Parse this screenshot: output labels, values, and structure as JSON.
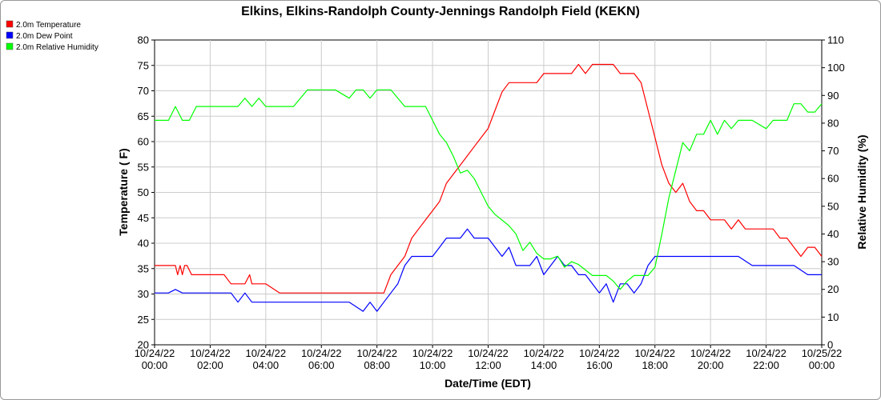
{
  "chart_data": {
    "type": "line",
    "title": "Elkins, Elkins-Randolph County-Jennings Randolph Field (KEKN)",
    "xlabel": "Date/Time (EDT)",
    "ylabel_left": "Temperature ( F)",
    "ylabel_right": "Relative Humidity (%)",
    "ylim_left": [
      20,
      80
    ],
    "ylim_right": [
      0,
      110
    ],
    "y_ticks_left": [
      "20",
      "25",
      "30",
      "35",
      "40",
      "45",
      "50",
      "55",
      "60",
      "65",
      "70",
      "75",
      "80"
    ],
    "y_ticks_right": [
      "0",
      "10",
      "20",
      "30",
      "40",
      "50",
      "60",
      "70",
      "80",
      "90",
      "100",
      "110"
    ],
    "x_ticks": [
      [
        "10/24/22",
        "00:00"
      ],
      [
        "10/24/22",
        "02:00"
      ],
      [
        "10/24/22",
        "04:00"
      ],
      [
        "10/24/22",
        "06:00"
      ],
      [
        "10/24/22",
        "08:00"
      ],
      [
        "10/24/22",
        "10:00"
      ],
      [
        "10/24/22",
        "12:00"
      ],
      [
        "10/24/22",
        "14:00"
      ],
      [
        "10/24/22",
        "16:00"
      ],
      [
        "10/24/22",
        "18:00"
      ],
      [
        "10/24/22",
        "20:00"
      ],
      [
        "10/24/22",
        "22:00"
      ],
      [
        "10/25/22",
        "00:00"
      ]
    ],
    "xlim_hours": [
      0,
      24
    ],
    "grid": true,
    "legend_position": "top-left",
    "series": [
      {
        "name": "2.0m Temperature",
        "axis": "left",
        "color": "#ff0000",
        "x": [
          0,
          0.25,
          0.5,
          0.75,
          0.83,
          0.92,
          1.0,
          1.08,
          1.17,
          1.33,
          1.5,
          1.67,
          1.75,
          1.83,
          2.0,
          2.25,
          2.5,
          2.75,
          3.0,
          3.25,
          3.42,
          3.5,
          3.67,
          4.0,
          4.5,
          5.0,
          5.5,
          6.0,
          6.5,
          7.0,
          7.5,
          8.0,
          8.25,
          8.5,
          8.75,
          9.0,
          9.25,
          9.5,
          9.75,
          10.0,
          10.25,
          10.5,
          10.75,
          11.0,
          11.25,
          11.5,
          11.75,
          12.0,
          12.25,
          12.5,
          12.75,
          13.0,
          13.25,
          13.5,
          13.75,
          14.0,
          14.25,
          14.5,
          14.75,
          15.0,
          15.25,
          15.5,
          15.75,
          16.0,
          16.25,
          16.5,
          16.75,
          17.0,
          17.25,
          17.5,
          17.75,
          18.0,
          18.25,
          18.5,
          18.75,
          19.0,
          19.25,
          19.5,
          19.75,
          20.0,
          20.25,
          20.5,
          20.75,
          21.0,
          21.25,
          21.5,
          21.75,
          22.0,
          22.25,
          22.5,
          22.75,
          23.0,
          23.25,
          23.5,
          23.75,
          24.0
        ],
        "values": [
          35.6,
          35.6,
          35.6,
          35.6,
          33.8,
          35.6,
          33.8,
          35.6,
          35.6,
          33.8,
          33.8,
          33.8,
          33.8,
          33.8,
          33.8,
          33.8,
          33.8,
          32.0,
          32.0,
          32.0,
          33.8,
          32.0,
          32.0,
          32.0,
          30.2,
          30.2,
          30.2,
          30.2,
          30.2,
          30.2,
          30.2,
          30.2,
          30.2,
          33.8,
          35.6,
          37.4,
          41.0,
          42.8,
          44.6,
          46.4,
          48.2,
          51.8,
          53.6,
          55.4,
          57.2,
          59.0,
          60.8,
          62.6,
          66.2,
          69.8,
          71.6,
          71.6,
          71.6,
          71.6,
          71.6,
          73.4,
          73.4,
          73.4,
          73.4,
          73.4,
          75.2,
          73.4,
          75.2,
          75.2,
          75.2,
          75.2,
          73.4,
          73.4,
          73.4,
          71.6,
          66.2,
          60.8,
          55.4,
          51.8,
          50.0,
          51.8,
          48.2,
          46.4,
          46.4,
          44.6,
          44.6,
          44.6,
          42.8,
          44.6,
          42.8,
          42.8,
          42.8,
          42.8,
          42.8,
          41.0,
          41.0,
          39.2,
          37.4,
          39.2,
          39.2,
          37.4
        ]
      },
      {
        "name": "2.0m Dew Point",
        "axis": "left",
        "color": "#0000ff",
        "x": [
          0,
          0.5,
          0.75,
          1.0,
          1.5,
          2.0,
          2.5,
          2.75,
          3.0,
          3.25,
          3.5,
          3.75,
          4.0,
          4.5,
          5.0,
          5.5,
          6.0,
          6.5,
          7.0,
          7.5,
          7.75,
          8.0,
          8.25,
          8.5,
          8.75,
          9.0,
          9.25,
          9.5,
          9.75,
          10.0,
          10.25,
          10.5,
          10.75,
          11.0,
          11.25,
          11.5,
          11.75,
          12.0,
          12.25,
          12.5,
          12.75,
          13.0,
          13.25,
          13.5,
          13.75,
          14.0,
          14.25,
          14.5,
          14.75,
          15.0,
          15.25,
          15.5,
          15.75,
          16.0,
          16.25,
          16.5,
          16.75,
          17.0,
          17.25,
          17.5,
          17.75,
          18.0,
          18.25,
          18.5,
          18.75,
          19.0,
          19.5,
          20.0,
          20.5,
          21.0,
          21.5,
          22.0,
          22.5,
          23.0,
          23.5,
          24.0
        ],
        "values": [
          30.2,
          30.2,
          30.9,
          30.2,
          30.2,
          30.2,
          30.2,
          30.2,
          28.4,
          30.2,
          28.4,
          28.4,
          28.4,
          28.4,
          28.4,
          28.4,
          28.4,
          28.4,
          28.4,
          26.6,
          28.4,
          26.6,
          28.4,
          30.2,
          32.0,
          35.6,
          37.4,
          37.4,
          37.4,
          37.4,
          39.2,
          41.0,
          41.0,
          41.0,
          42.8,
          41.0,
          41.0,
          41.0,
          39.2,
          37.4,
          39.2,
          35.6,
          35.6,
          35.6,
          37.4,
          33.8,
          35.6,
          37.4,
          35.6,
          35.6,
          33.8,
          33.8,
          32.0,
          30.2,
          32.0,
          28.4,
          32.0,
          32.0,
          30.2,
          32.0,
          35.6,
          37.4,
          37.4,
          37.4,
          37.4,
          37.4,
          37.4,
          37.4,
          37.4,
          37.4,
          35.6,
          35.6,
          35.6,
          35.6,
          33.8,
          33.8
        ]
      },
      {
        "name": "2.0m Relative Humidity",
        "axis": "right",
        "color": "#00ff00",
        "x": [
          0,
          0.5,
          0.75,
          1.0,
          1.25,
          1.5,
          1.75,
          2.0,
          2.5,
          3.0,
          3.25,
          3.5,
          3.75,
          4.0,
          4.5,
          5.0,
          5.5,
          6.0,
          6.5,
          7.0,
          7.25,
          7.5,
          7.75,
          8.0,
          8.5,
          9.0,
          9.5,
          9.75,
          10.0,
          10.25,
          10.5,
          10.75,
          11.0,
          11.25,
          11.5,
          11.75,
          12.0,
          12.25,
          12.5,
          12.75,
          13.0,
          13.25,
          13.5,
          13.75,
          14.0,
          14.25,
          14.5,
          14.75,
          15.0,
          15.25,
          15.5,
          15.75,
          16.0,
          16.25,
          16.5,
          16.75,
          17.0,
          17.25,
          17.5,
          17.75,
          18.0,
          18.25,
          18.5,
          18.75,
          19.0,
          19.25,
          19.5,
          19.75,
          20.0,
          20.25,
          20.5,
          20.75,
          21.0,
          21.5,
          22.0,
          22.25,
          22.5,
          22.75,
          23.0,
          23.25,
          23.5,
          23.75,
          24.0
        ],
        "values": [
          81,
          81,
          86,
          81,
          81,
          86,
          86,
          86,
          86,
          86,
          89,
          86,
          89,
          86,
          86,
          86,
          92,
          92,
          92,
          89,
          92,
          92,
          89,
          92,
          92,
          86,
          86,
          86,
          81,
          76,
          73,
          68,
          62,
          63,
          60,
          55,
          50,
          47,
          45,
          43,
          40,
          34,
          37,
          33,
          31,
          31,
          32,
          28,
          30,
          29,
          27,
          25,
          25,
          25,
          23,
          20,
          23,
          25,
          25,
          25,
          28,
          40,
          53,
          63,
          73,
          70,
          76,
          76,
          81,
          76,
          81,
          78,
          81,
          81,
          78,
          81,
          81,
          81,
          87,
          87,
          84,
          84,
          87
        ]
      }
    ]
  }
}
